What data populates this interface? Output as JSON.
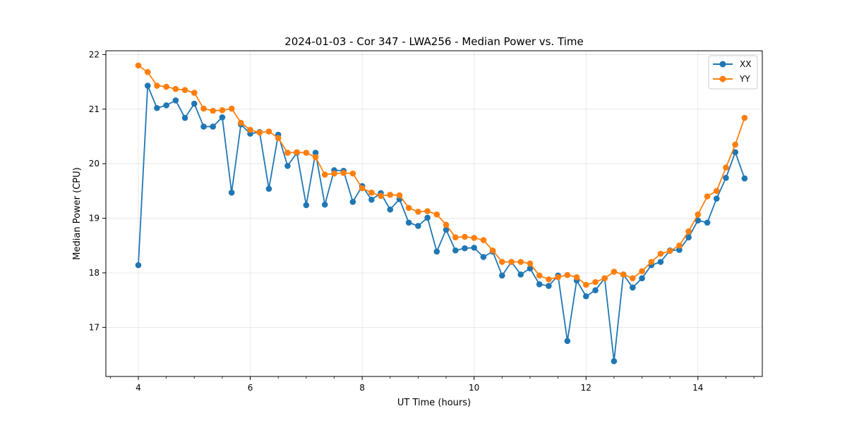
{
  "chart_data": {
    "type": "line",
    "title": "2024-01-03 - Cor 347 - LWA256 - Median Power vs. Time",
    "xlabel": "UT Time (hours)",
    "ylabel": "Median Power (CPU)",
    "xlim": [
      3.42,
      15.15
    ],
    "ylim": [
      16.1,
      22.07
    ],
    "xticks": [
      4,
      6,
      8,
      10,
      12,
      14
    ],
    "xtick_labels": [
      "4",
      "6",
      "8",
      "10",
      "12",
      "14"
    ],
    "yticks": [
      17,
      18,
      19,
      20,
      21,
      22
    ],
    "ytick_labels": [
      "17",
      "18",
      "19",
      "20",
      "21",
      "22"
    ],
    "grid": true,
    "legend_position": "top-right",
    "x": [
      4.0,
      4.167,
      4.333,
      4.5,
      4.667,
      4.833,
      5.0,
      5.167,
      5.333,
      5.5,
      5.667,
      5.833,
      6.0,
      6.167,
      6.333,
      6.5,
      6.667,
      6.833,
      7.0,
      7.167,
      7.333,
      7.5,
      7.667,
      7.833,
      8.0,
      8.167,
      8.333,
      8.5,
      8.667,
      8.833,
      9.0,
      9.167,
      9.333,
      9.5,
      9.667,
      9.833,
      10.0,
      10.167,
      10.333,
      10.5,
      10.667,
      10.833,
      11.0,
      11.167,
      11.333,
      11.5,
      11.667,
      11.833,
      12.0,
      12.167,
      12.333,
      12.5,
      12.667,
      12.833,
      13.0,
      13.167,
      13.333,
      13.5,
      13.667,
      13.833,
      14.0,
      14.167,
      14.333,
      14.5,
      14.667,
      14.833
    ],
    "series": [
      {
        "name": "XX",
        "color": "#1f77b4",
        "values": [
          18.14,
          21.43,
          21.02,
          21.07,
          21.16,
          20.84,
          21.1,
          20.68,
          20.68,
          20.85,
          19.47,
          20.72,
          20.55,
          20.58,
          19.54,
          20.53,
          19.96,
          20.2,
          19.24,
          20.2,
          19.25,
          19.88,
          19.87,
          19.3,
          19.59,
          19.34,
          19.46,
          19.16,
          19.35,
          18.92,
          18.86,
          19.01,
          18.39,
          18.79,
          18.41,
          18.45,
          18.46,
          18.29,
          18.39,
          17.95,
          18.2,
          17.97,
          18.08,
          17.79,
          17.76,
          17.95,
          16.75,
          17.86,
          17.57,
          17.68,
          17.9,
          16.38,
          17.97,
          17.73,
          17.9,
          18.14,
          18.2,
          18.41,
          18.42,
          18.65,
          18.96,
          18.92,
          19.36,
          19.74,
          20.21,
          19.73
        ]
      },
      {
        "name": "YY",
        "color": "#ff7f0e",
        "values": [
          21.8,
          21.68,
          21.43,
          21.41,
          21.37,
          21.35,
          21.3,
          21.01,
          20.97,
          20.98,
          21.01,
          20.75,
          20.62,
          20.57,
          20.59,
          20.47,
          20.2,
          20.21,
          20.2,
          20.12,
          19.8,
          19.82,
          19.83,
          19.82,
          19.55,
          19.47,
          19.41,
          19.43,
          19.42,
          19.19,
          19.12,
          19.13,
          19.07,
          18.88,
          18.65,
          18.66,
          18.64,
          18.6,
          18.41,
          18.2,
          18.2,
          18.2,
          18.17,
          17.95,
          17.88,
          17.92,
          17.96,
          17.92,
          17.78,
          17.83,
          17.9,
          18.02,
          17.97,
          17.9,
          18.03,
          18.2,
          18.35,
          18.4,
          18.5,
          18.76,
          19.07,
          19.4,
          19.5,
          19.93,
          20.35,
          20.84
        ]
      }
    ]
  }
}
